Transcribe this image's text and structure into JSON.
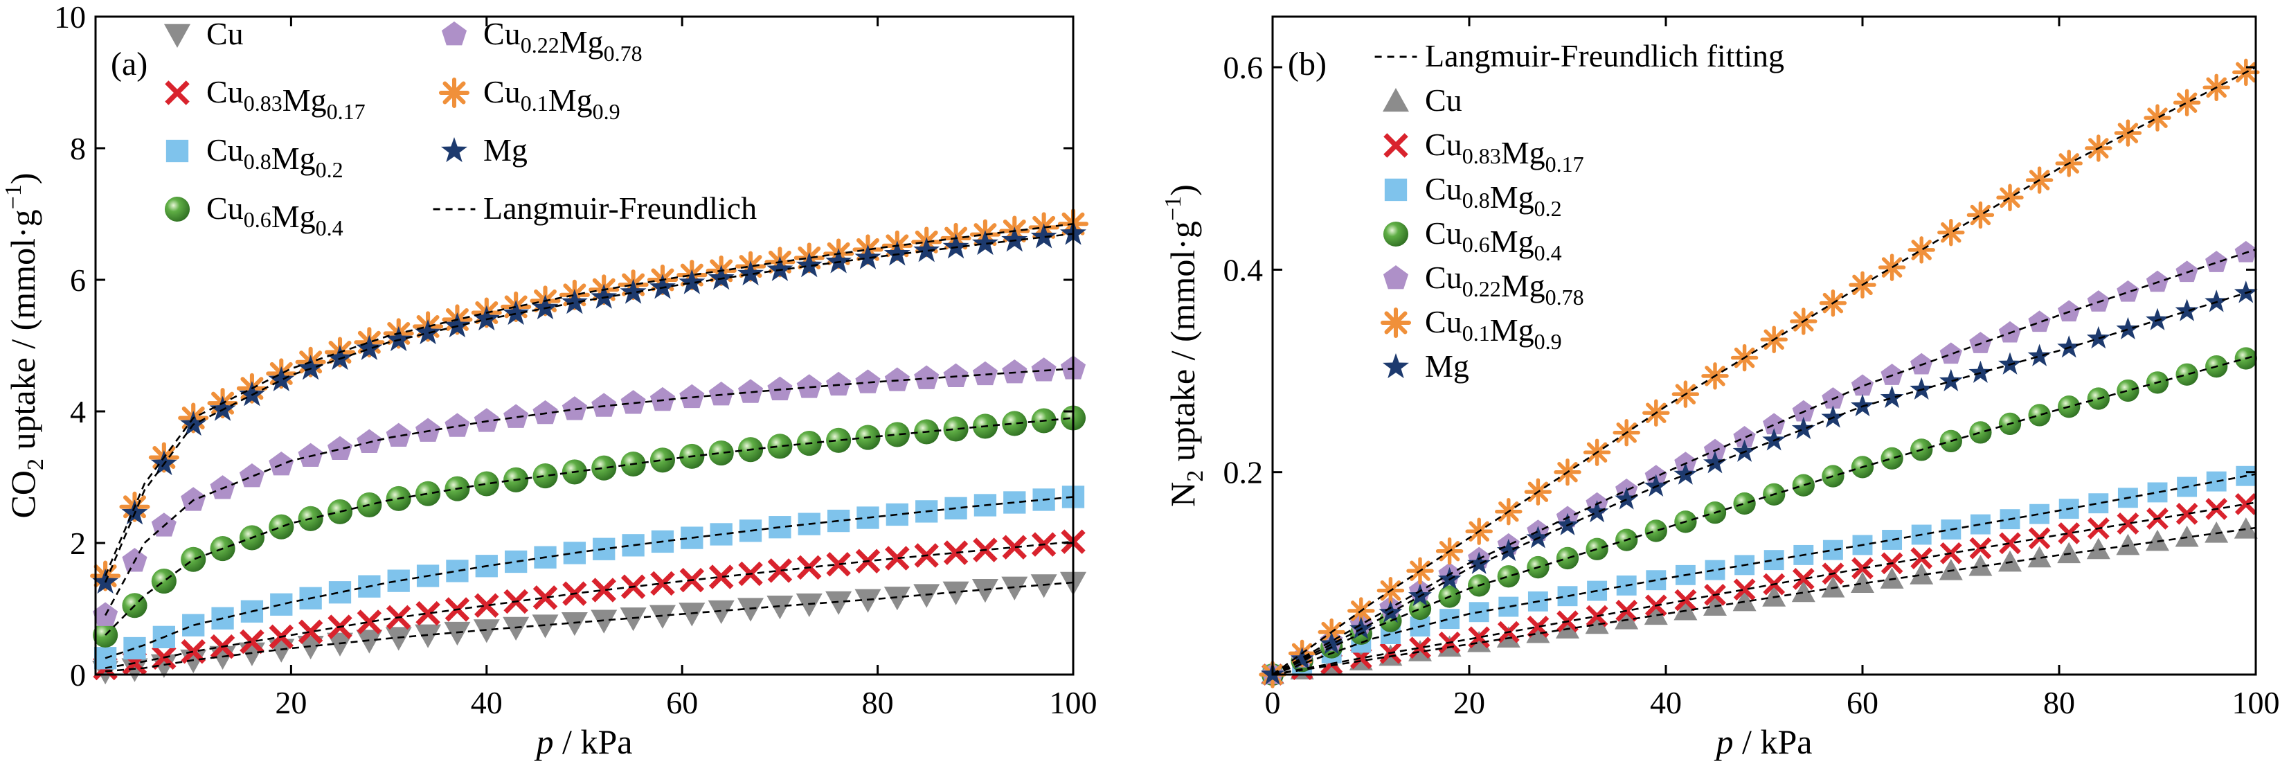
{
  "figure": {
    "background": "#ffffff"
  },
  "series_styles": {
    "Cu": {
      "marker": "triangle-down",
      "color": "#8c8c8c"
    },
    "Cu0.83Mg0.17": {
      "marker": "x",
      "color": "#d9232d"
    },
    "Cu0.8Mg0.2": {
      "marker": "square",
      "color": "#7fc3ec"
    },
    "Cu0.6Mg0.4": {
      "marker": "sphere",
      "color": "#5fae45"
    },
    "Cu0.22Mg0.78": {
      "marker": "pentagon",
      "color": "#ae90c8"
    },
    "Cu0.1Mg0.9": {
      "marker": "asterisk",
      "color": "#f0903a"
    },
    "Mg": {
      "marker": "star",
      "color": "#1d3a6e"
    },
    "fit": {
      "marker": "dashed-line",
      "color": "#000000"
    }
  },
  "chart_data": [
    {
      "type": "scatter",
      "panel": "(a)",
      "xlabel_italic": "p",
      "xlabel_rest": " / kPa",
      "ylabel": {
        "pre": "CO",
        "sub": "2",
        "mid": " uptake / (mmol·g",
        "sup": "−1",
        "post": ")"
      },
      "xlim": [
        0,
        100
      ],
      "ylim": [
        0,
        10
      ],
      "xticks": [
        20,
        40,
        60,
        80,
        100
      ],
      "xtick_labels": [
        "20",
        "40",
        "60",
        "80",
        "100"
      ],
      "yticks": [
        0,
        2,
        4,
        6,
        8,
        10
      ],
      "ytick_labels": [
        "0",
        "2",
        "4",
        "6",
        "8",
        "10"
      ],
      "grid": false,
      "legend_position": "top-left, two columns",
      "legend": [
        {
          "key": "Cu",
          "parts": [
            [
              "Cu",
              ""
            ]
          ]
        },
        {
          "key": "Cu0.83Mg0.17",
          "parts": [
            [
              "Cu",
              "0.83"
            ],
            [
              "Mg",
              "0.17"
            ]
          ]
        },
        {
          "key": "Cu0.8Mg0.2",
          "parts": [
            [
              "Cu",
              "0.8"
            ],
            [
              "Mg",
              "0.2"
            ]
          ]
        },
        {
          "key": "Cu0.6Mg0.4",
          "parts": [
            [
              "Cu",
              "0.6"
            ],
            [
              "Mg",
              "0.4"
            ]
          ]
        },
        {
          "key": "Cu0.22Mg0.78",
          "parts": [
            [
              "Cu",
              "0.22"
            ],
            [
              "Mg",
              "0.78"
            ]
          ]
        },
        {
          "key": "Cu0.1Mg0.9",
          "parts": [
            [
              "Cu",
              "0.1"
            ],
            [
              "Mg",
              "0.9"
            ]
          ]
        },
        {
          "key": "Mg",
          "parts": [
            [
              "Mg",
              ""
            ]
          ]
        },
        {
          "key": "fit",
          "parts": [
            [
              "Langmuir-Freundlich",
              ""
            ]
          ]
        }
      ],
      "series": [
        {
          "key": "Cu",
          "points": [
            [
              1,
              0.05
            ],
            [
              5,
              0.1
            ],
            [
              10,
              0.22
            ],
            [
              20,
              0.4
            ],
            [
              30,
              0.55
            ],
            [
              40,
              0.68
            ],
            [
              50,
              0.8
            ],
            [
              60,
              0.92
            ],
            [
              70,
              1.04
            ],
            [
              80,
              1.15
            ],
            [
              90,
              1.28
            ],
            [
              100,
              1.4
            ]
          ]
        },
        {
          "key": "Cu0.83Mg0.17",
          "points": [
            [
              1,
              0.1
            ],
            [
              5,
              0.2
            ],
            [
              10,
              0.35
            ],
            [
              20,
              0.6
            ],
            [
              30,
              0.85
            ],
            [
              40,
              1.05
            ],
            [
              50,
              1.25
            ],
            [
              60,
              1.42
            ],
            [
              70,
              1.58
            ],
            [
              80,
              1.74
            ],
            [
              90,
              1.88
            ],
            [
              100,
              2.02
            ]
          ]
        },
        {
          "key": "Cu0.8Mg0.2",
          "points": [
            [
              1,
              0.25
            ],
            [
              5,
              0.45
            ],
            [
              10,
              0.75
            ],
            [
              20,
              1.1
            ],
            [
              30,
              1.4
            ],
            [
              40,
              1.65
            ],
            [
              50,
              1.87
            ],
            [
              60,
              2.06
            ],
            [
              70,
              2.24
            ],
            [
              80,
              2.4
            ],
            [
              90,
              2.56
            ],
            [
              100,
              2.7
            ]
          ]
        },
        {
          "key": "Cu0.6Mg0.4",
          "points": [
            [
              1,
              0.6
            ],
            [
              5,
              1.2
            ],
            [
              10,
              1.75
            ],
            [
              20,
              2.3
            ],
            [
              30,
              2.65
            ],
            [
              40,
              2.9
            ],
            [
              50,
              3.1
            ],
            [
              60,
              3.3
            ],
            [
              70,
              3.47
            ],
            [
              80,
              3.62
            ],
            [
              90,
              3.76
            ],
            [
              100,
              3.9
            ]
          ]
        },
        {
          "key": "Cu0.22Mg0.78",
          "points": [
            [
              1,
              0.9
            ],
            [
              5,
              2.0
            ],
            [
              10,
              2.65
            ],
            [
              20,
              3.25
            ],
            [
              30,
              3.6
            ],
            [
              40,
              3.85
            ],
            [
              50,
              4.05
            ],
            [
              60,
              4.2
            ],
            [
              70,
              4.33
            ],
            [
              80,
              4.45
            ],
            [
              90,
              4.55
            ],
            [
              100,
              4.65
            ]
          ]
        },
        {
          "key": "Cu0.1Mg0.9",
          "points": [
            [
              1,
              1.5
            ],
            [
              5,
              2.9
            ],
            [
              10,
              3.9
            ],
            [
              20,
              4.65
            ],
            [
              30,
              5.15
            ],
            [
              40,
              5.5
            ],
            [
              50,
              5.8
            ],
            [
              60,
              6.05
            ],
            [
              70,
              6.27
            ],
            [
              80,
              6.48
            ],
            [
              90,
              6.67
            ],
            [
              100,
              6.85
            ]
          ]
        },
        {
          "key": "Mg",
          "points": [
            [
              1,
              1.4
            ],
            [
              5,
              2.8
            ],
            [
              10,
              3.8
            ],
            [
              20,
              4.55
            ],
            [
              30,
              5.05
            ],
            [
              40,
              5.4
            ],
            [
              50,
              5.68
            ],
            [
              60,
              5.93
            ],
            [
              70,
              6.15
            ],
            [
              80,
              6.35
            ],
            [
              90,
              6.53
            ],
            [
              100,
              6.7
            ]
          ]
        }
      ]
    },
    {
      "type": "scatter",
      "panel": "(b)",
      "xlabel_italic": "p",
      "xlabel_rest": " / kPa",
      "ylabel": {
        "pre": "N",
        "sub": "2",
        "mid": " uptake / (mmol·g",
        "sup": "−1",
        "post": ")"
      },
      "xlim": [
        0,
        100
      ],
      "ylim": [
        0,
        0.65
      ],
      "xticks": [
        0,
        20,
        40,
        60,
        80,
        100
      ],
      "xtick_labels": [
        "0",
        "20",
        "40",
        "60",
        "80",
        "100"
      ],
      "yticks": [
        0.2,
        0.4,
        0.6
      ],
      "ytick_labels": [
        "0.2",
        "0.4",
        "0.6"
      ],
      "grid": false,
      "legend_position": "top-left, one column",
      "legend": [
        {
          "key": "fit",
          "parts": [
            [
              "Langmuir-Freundlich fitting",
              ""
            ]
          ]
        },
        {
          "key": "Cu",
          "parts": [
            [
              "Cu",
              ""
            ]
          ]
        },
        {
          "key": "Cu0.83Mg0.17",
          "parts": [
            [
              "Cu",
              "0.83"
            ],
            [
              "Mg",
              "0.17"
            ]
          ]
        },
        {
          "key": "Cu0.8Mg0.2",
          "parts": [
            [
              "Cu",
              "0.8"
            ],
            [
              "Mg",
              "0.2"
            ]
          ]
        },
        {
          "key": "Cu0.6Mg0.4",
          "parts": [
            [
              "Cu",
              "0.6"
            ],
            [
              "Mg",
              "0.4"
            ]
          ]
        },
        {
          "key": "Cu0.22Mg0.78",
          "parts": [
            [
              "Cu",
              "0.22"
            ],
            [
              "Mg",
              "0.78"
            ]
          ]
        },
        {
          "key": "Cu0.1Mg0.9",
          "parts": [
            [
              "Cu",
              "0.1"
            ],
            [
              "Mg",
              "0.9"
            ]
          ]
        },
        {
          "key": "Mg",
          "parts": [
            [
              "Mg",
              ""
            ]
          ]
        }
      ],
      "series": [
        {
          "key": "Cu",
          "points": [
            [
              0,
              0
            ],
            [
              10,
              0.015
            ],
            [
              20,
              0.03
            ],
            [
              40,
              0.06
            ],
            [
              60,
              0.09
            ],
            [
              80,
              0.118
            ],
            [
              100,
              0.145
            ]
          ]
        },
        {
          "key": "Cu0.83Mg0.17",
          "points": [
            [
              0,
              0
            ],
            [
              10,
              0.018
            ],
            [
              20,
              0.035
            ],
            [
              40,
              0.07
            ],
            [
              60,
              0.105
            ],
            [
              80,
              0.138
            ],
            [
              100,
              0.17
            ]
          ]
        },
        {
          "key": "Cu0.8Mg0.2",
          "points": [
            [
              0,
              0
            ],
            [
              10,
              0.035
            ],
            [
              20,
              0.06
            ],
            [
              40,
              0.095
            ],
            [
              60,
              0.128
            ],
            [
              80,
              0.162
            ],
            [
              100,
              0.198
            ]
          ]
        },
        {
          "key": "Cu0.6Mg0.4",
          "points": [
            [
              0,
              0
            ],
            [
              10,
              0.045
            ],
            [
              20,
              0.085
            ],
            [
              40,
              0.145
            ],
            [
              60,
              0.205
            ],
            [
              80,
              0.262
            ],
            [
              100,
              0.315
            ]
          ]
        },
        {
          "key": "Cu0.22Mg0.78",
          "points": [
            [
              0,
              0
            ],
            [
              10,
              0.055
            ],
            [
              20,
              0.11
            ],
            [
              40,
              0.2
            ],
            [
              60,
              0.285
            ],
            [
              80,
              0.355
            ],
            [
              100,
              0.42
            ]
          ]
        },
        {
          "key": "Cu0.1Mg0.9",
          "points": [
            [
              0,
              0
            ],
            [
              10,
              0.07
            ],
            [
              20,
              0.135
            ],
            [
              40,
              0.265
            ],
            [
              60,
              0.385
            ],
            [
              80,
              0.5
            ],
            [
              100,
              0.6
            ]
          ]
        },
        {
          "key": "Mg",
          "points": [
            [
              0,
              0
            ],
            [
              10,
              0.05
            ],
            [
              20,
              0.105
            ],
            [
              40,
              0.19
            ],
            [
              60,
              0.265
            ],
            [
              80,
              0.32
            ],
            [
              100,
              0.38
            ]
          ]
        }
      ]
    }
  ]
}
